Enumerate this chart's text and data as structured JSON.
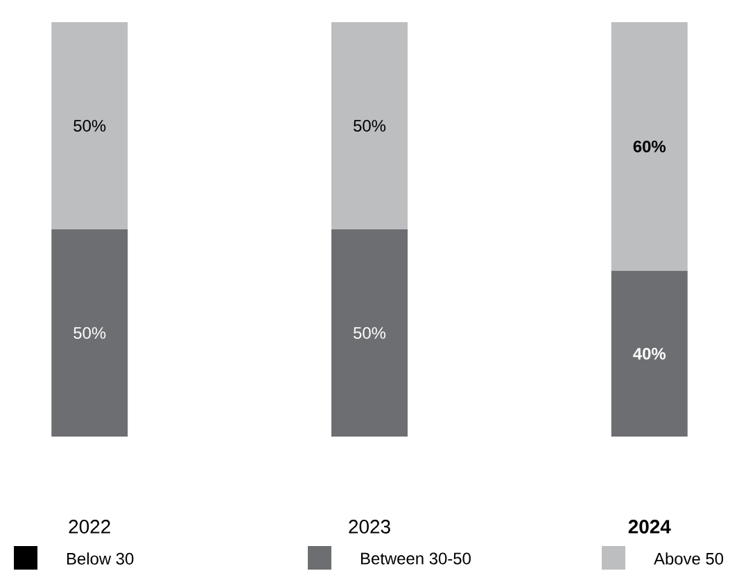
{
  "chart_data": {
    "type": "bar",
    "stacked": true,
    "categories": [
      "2022",
      "2023",
      "**2024**"
    ],
    "legend": "bottom",
    "series": [
      {
        "name": "Below 30",
        "color": "#000000",
        "values": [
          null,
          null,
          null
        ],
        "value_labels": [
          null,
          null,
          null
        ]
      },
      {
        "name": "Between 30-50",
        "color": "#6d6e71",
        "values": [
          50,
          50,
          40
        ],
        "value_labels": [
          "50%",
          "50%",
          "**40%**"
        ]
      },
      {
        "name": "Above 50",
        "color": "#bcbec0",
        "values": [
          50,
          50,
          60
        ],
        "value_labels": [
          "50%",
          "50%",
          "**60%**"
        ]
      }
    ]
  }
}
